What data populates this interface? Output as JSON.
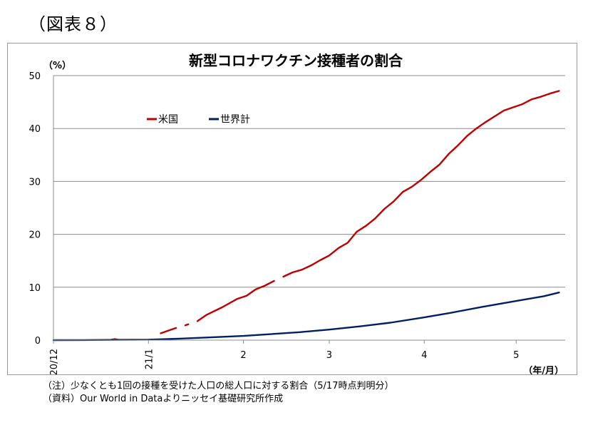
{
  "figure_label": "（図表８）",
  "chart_data": {
    "type": "line",
    "title": "新型コロナワクチン接種者の割合",
    "ylabel": "（%）",
    "xlabel": "（年/月）",
    "ylim": [
      0,
      50
    ],
    "yticks": [
      0,
      10,
      20,
      30,
      40,
      50
    ],
    "x_unit": "days since 2020-12-01",
    "xlim": [
      0,
      167
    ],
    "xtick_labels": [
      {
        "x": 0,
        "label": "20/12"
      },
      {
        "x": 31,
        "label": "21/1"
      },
      {
        "x": 62,
        "label": "2"
      },
      {
        "x": 90,
        "label": "3"
      },
      {
        "x": 121,
        "label": "4"
      },
      {
        "x": 151,
        "label": "5"
      }
    ],
    "legend": {
      "placement": "top-left"
    },
    "grid": true,
    "series": [
      {
        "name": "米国",
        "color": "#c00000",
        "segments": [
          [
            [
              19,
              0.1
            ],
            [
              20,
              0.2
            ],
            [
              21,
              0.1
            ]
          ],
          [
            [
              35,
              1.3
            ],
            [
              38,
              1.9
            ],
            [
              40,
              2.3
            ]
          ],
          [
            [
              43,
              2.8
            ],
            [
              44,
              3.0
            ]
          ],
          [
            [
              47,
              3.6
            ],
            [
              50,
              4.8
            ],
            [
              55,
              6.2
            ],
            [
              60,
              7.8
            ],
            [
              63,
              8.4
            ],
            [
              66,
              9.6
            ],
            [
              69,
              10.3
            ],
            [
              72,
              11.2
            ]
          ],
          [
            [
              75,
              12.0
            ],
            [
              78,
              12.8
            ],
            [
              81,
              13.3
            ],
            [
              84,
              14.1
            ],
            [
              87,
              15.1
            ],
            [
              90,
              16.0
            ],
            [
              93,
              17.4
            ],
            [
              96,
              18.4
            ],
            [
              99,
              20.5
            ],
            [
              102,
              21.6
            ],
            [
              105,
              23.0
            ],
            [
              108,
              24.8
            ],
            [
              111,
              26.2
            ],
            [
              114,
              28.0
            ],
            [
              117,
              29.0
            ],
            [
              120,
              30.3
            ],
            [
              123,
              31.8
            ],
            [
              126,
              33.2
            ],
            [
              129,
              35.2
            ],
            [
              132,
              36.8
            ],
            [
              135,
              38.6
            ],
            [
              138,
              40.0
            ],
            [
              141,
              41.2
            ],
            [
              144,
              42.3
            ],
            [
              147,
              43.4
            ],
            [
              150,
              44.0
            ],
            [
              153,
              44.6
            ],
            [
              156,
              45.5
            ],
            [
              159,
              46.0
            ],
            [
              162,
              46.6
            ],
            [
              165,
              47.1
            ]
          ]
        ]
      },
      {
        "name": "世界計",
        "color": "#002060",
        "segments": [
          [
            [
              0,
              0
            ],
            [
              10,
              0.02
            ],
            [
              20,
              0.05
            ],
            [
              31,
              0.1
            ],
            [
              40,
              0.25
            ],
            [
              50,
              0.5
            ],
            [
              62,
              0.8
            ],
            [
              70,
              1.1
            ],
            [
              80,
              1.5
            ],
            [
              90,
              2.0
            ],
            [
              100,
              2.6
            ],
            [
              110,
              3.3
            ],
            [
              121,
              4.3
            ],
            [
              130,
              5.2
            ],
            [
              140,
              6.3
            ],
            [
              150,
              7.3
            ],
            [
              160,
              8.3
            ],
            [
              165,
              9.0
            ]
          ]
        ]
      }
    ]
  },
  "notes": {
    "line1": "（注）少なくとも1回の接種を受けた人口の総人口に対する割合（5/17時点判明分）",
    "line2": "（資料）Our World in Dataよりニッセイ基礎研究所作成"
  }
}
